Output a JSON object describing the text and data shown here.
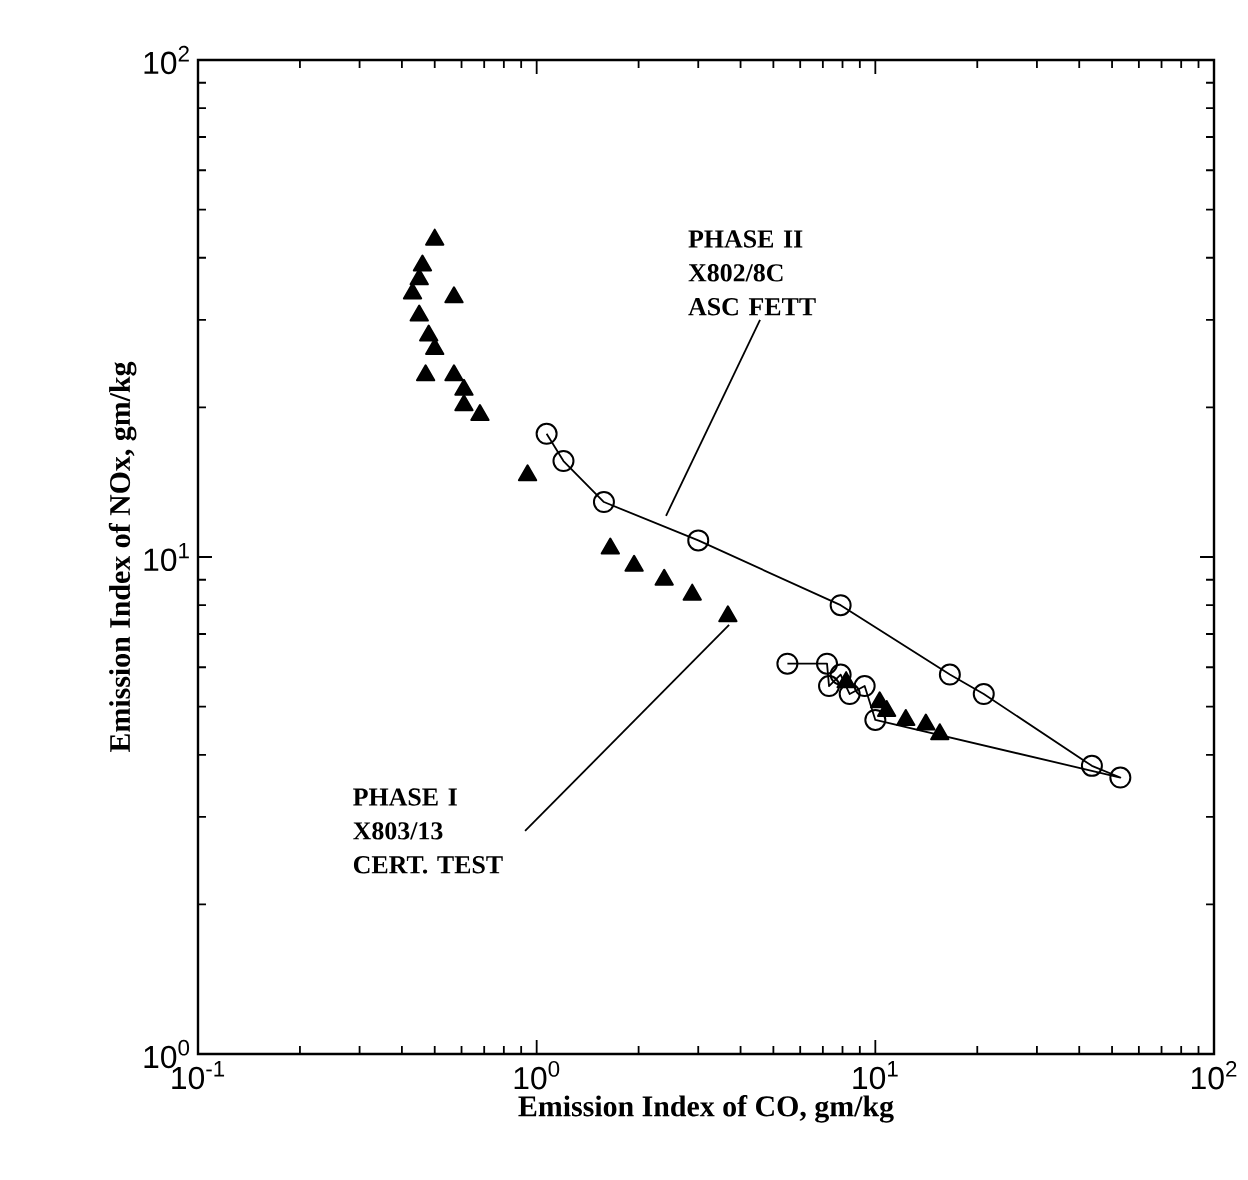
{
  "chart_data": {
    "type": "scatter",
    "xlabel": "Emission Index of CO, gm/kg",
    "ylabel": "Emission Index of NOx, gm/kg",
    "log": "xy",
    "xlim": [
      0.1,
      100
    ],
    "ylim": [
      1,
      100
    ],
    "xticks": [
      {
        "value": 0.1,
        "label": "10$^{-1}$"
      },
      {
        "value": 1,
        "label": "10$^{0}$"
      },
      {
        "value": 10,
        "label": "10$^{1}$"
      },
      {
        "value": 100,
        "label": "10$^{2}$"
      }
    ],
    "yticks": [
      {
        "value": 1,
        "label": "10$^{0}$"
      },
      {
        "value": 10,
        "label": "10$^{1}$"
      },
      {
        "value": 100,
        "label": "10$^{2}$"
      }
    ],
    "series": [
      {
        "type": "line",
        "marker": "circle",
        "color": "#000000",
        "x": [
          1.07,
          1.2,
          1.58,
          3.0,
          7.9,
          16.6,
          20.9,
          43.6,
          52.9,
          10.0,
          9.3,
          8.4,
          7.9,
          7.3,
          7.2,
          5.5
        ],
        "values": [
          17.7,
          15.6,
          12.9,
          10.8,
          8.0,
          5.8,
          5.3,
          3.8,
          3.6,
          4.7,
          5.5,
          5.3,
          5.8,
          5.5,
          6.1,
          6.1
        ]
      },
      {
        "marker": "triangle",
        "color": "#000000",
        "x": [
          0.5,
          0.46,
          0.45,
          0.43,
          0.57,
          0.45,
          0.48,
          0.5,
          0.47,
          0.57,
          0.61,
          0.61,
          0.68,
          0.94,
          1.65,
          1.94,
          2.38,
          2.88,
          3.67,
          8.2,
          10.3,
          10.8,
          12.3,
          14.1,
          15.5
        ],
        "values": [
          43.5,
          38.6,
          36.2,
          33.9,
          33.3,
          30.6,
          27.9,
          26.2,
          23.2,
          23.2,
          21.7,
          20.2,
          19.3,
          14.6,
          10.4,
          9.6,
          9.0,
          8.4,
          7.6,
          5.6,
          5.1,
          4.9,
          4.7,
          4.6,
          4.4
        ]
      }
    ],
    "annotations": [
      {
        "text": "PHASE II X802/8C ASC FETT",
        "x": 2.41,
        "y": 12.1
      },
      {
        "text": "PHASE I X803/13 CERT. TEST",
        "x": 3.7,
        "y": 7.3
      }
    ]
  }
}
